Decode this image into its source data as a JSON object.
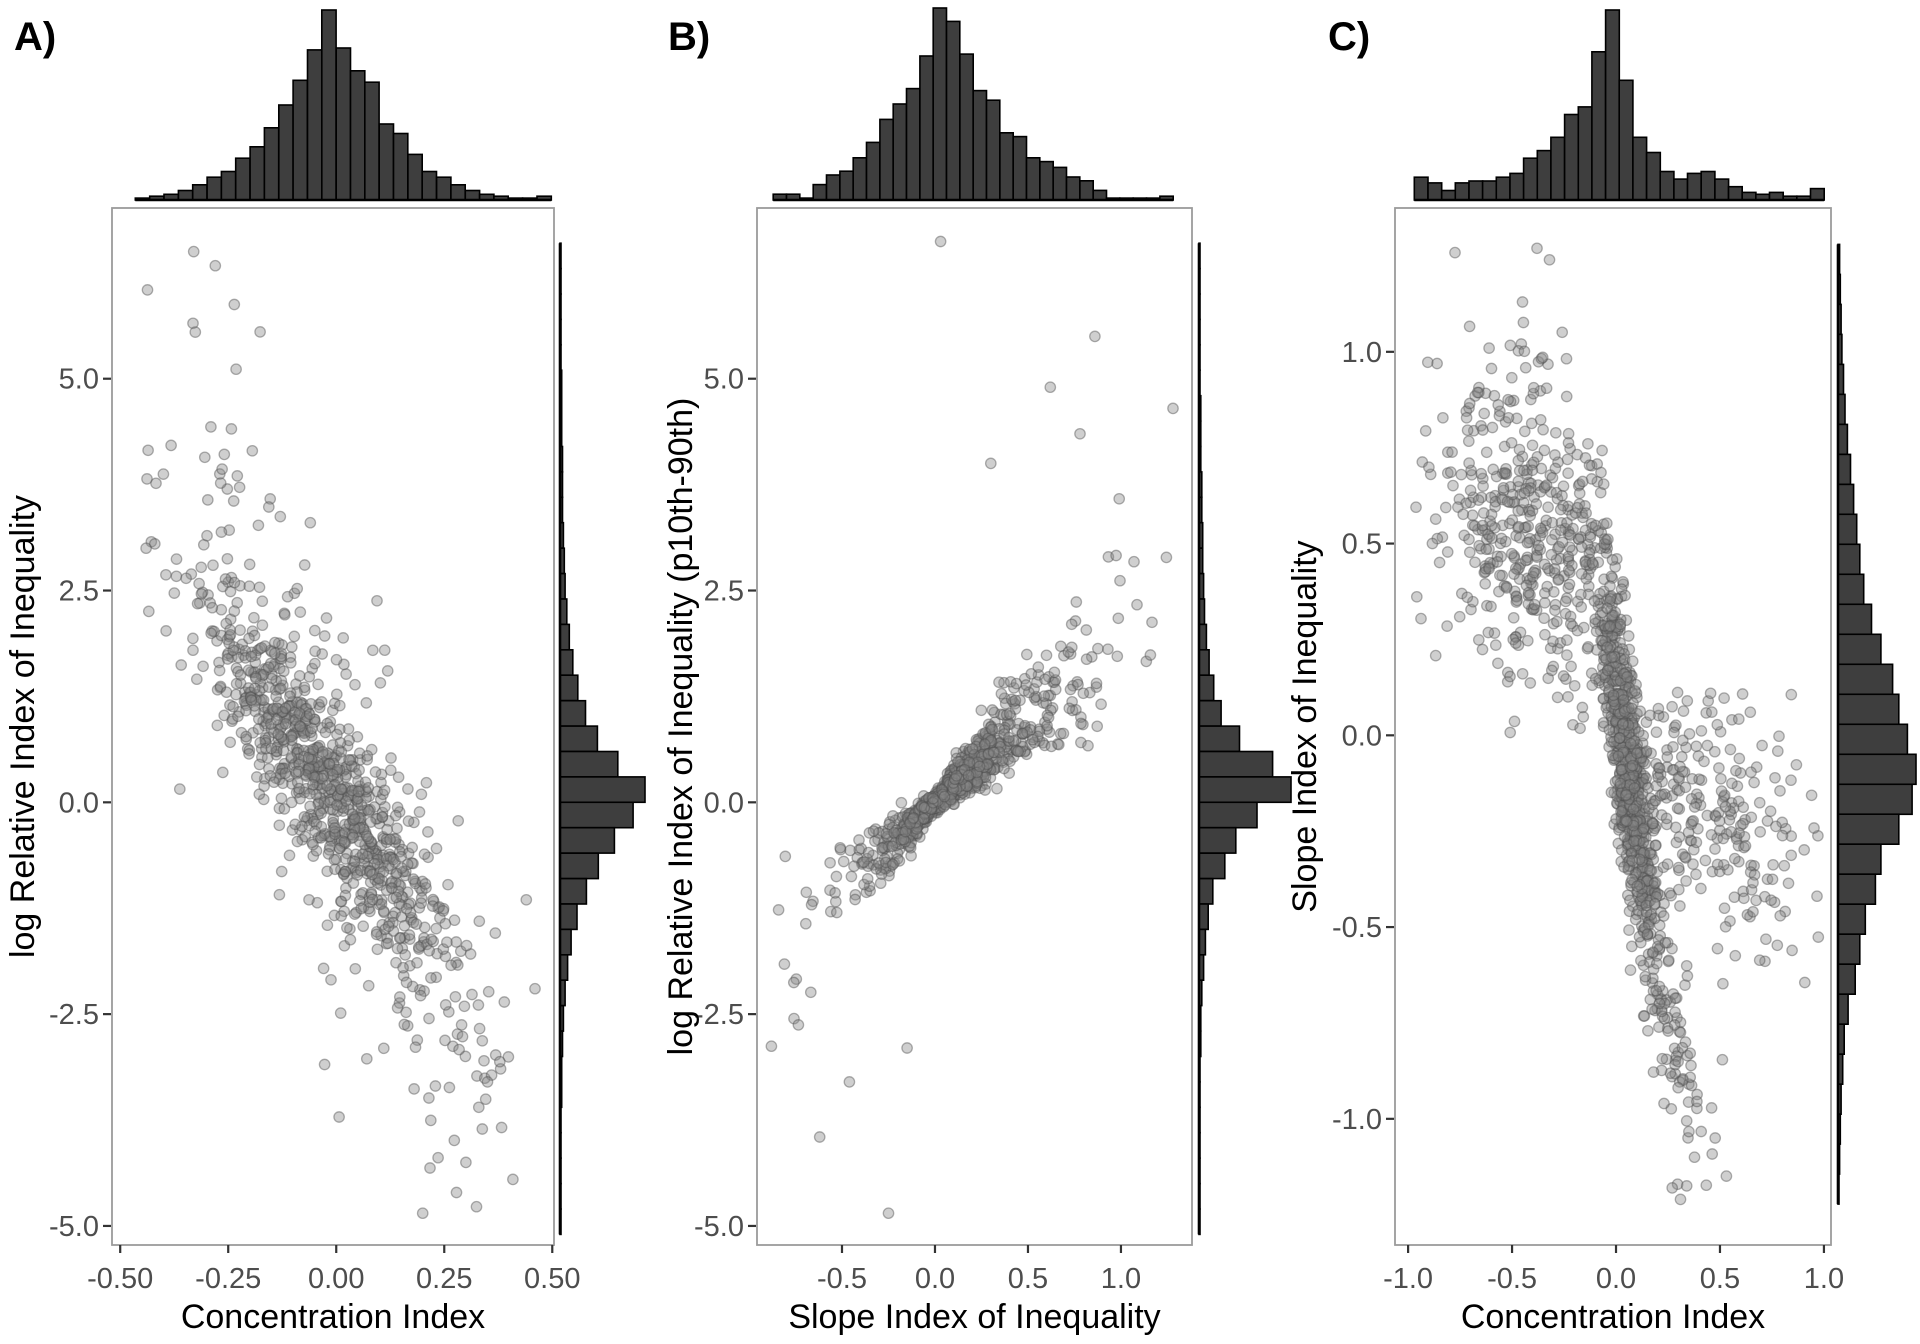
{
  "figure_title": "",
  "style": {
    "background": "#ffffff",
    "histogram_fill": "#3E3E3E",
    "histogram_stroke": "#000000",
    "point_fill": "#868686",
    "point_fill_opacity": 0.4,
    "point_stroke": "#4f4f4f",
    "point_stroke_opacity": 0.45,
    "panel_border_color": "#9b9b9b",
    "tick_label_color": "#4d4d4d",
    "axis_title_color": "#000000",
    "point_radius": 5.2
  },
  "chart_data": [
    {
      "type": "scatter_with_marginal_histograms",
      "panel_label": "A)",
      "x_axis": {
        "title": "Concentration Index",
        "range": [
          -0.519,
          0.504
        ],
        "ticks": [
          {
            "value": -0.5,
            "label": "-0.50"
          },
          {
            "value": -0.25,
            "label": "-0.25"
          },
          {
            "value": 0.0,
            "label": "0.00"
          },
          {
            "value": 0.25,
            "label": "0.25"
          },
          {
            "value": 0.5,
            "label": "0.50"
          }
        ]
      },
      "y_axis": {
        "title": "log Relative Index of Inequality",
        "range": [
          -5.225,
          7.015
        ],
        "ticks": [
          {
            "value": 5.0,
            "label": "5.0"
          },
          {
            "value": 2.5,
            "label": "2.5"
          },
          {
            "value": 0.0,
            "label": "0.0"
          },
          {
            "value": -2.5,
            "label": "-2.5"
          },
          {
            "value": -5.0,
            "label": "-5.0"
          }
        ]
      },
      "top_histogram": {
        "orientation": "x",
        "bin_start": -0.465,
        "bin_width": 0.0332,
        "rel_heights": [
          0.01,
          0.02,
          0.03,
          0.05,
          0.08,
          0.12,
          0.15,
          0.22,
          0.28,
          0.38,
          0.5,
          0.63,
          0.79,
          1.0,
          0.8,
          0.68,
          0.62,
          0.4,
          0.35,
          0.24,
          0.15,
          0.12,
          0.08,
          0.05,
          0.03,
          0.02,
          0.01,
          0.01,
          0.02
        ]
      },
      "right_histogram": {
        "orientation": "y",
        "bin_top": 6.6,
        "bin_width": 0.3,
        "rel_heights": [
          0.01,
          0.01,
          0.01,
          0.01,
          0.01,
          0.02,
          0.02,
          0.02,
          0.03,
          0.03,
          0.03,
          0.04,
          0.05,
          0.06,
          0.08,
          0.11,
          0.15,
          0.21,
          0.3,
          0.44,
          0.68,
          1.0,
          0.86,
          0.64,
          0.45,
          0.31,
          0.2,
          0.13,
          0.09,
          0.06,
          0.04,
          0.03,
          0.02,
          0.02,
          0.01,
          0.01,
          0.01,
          0.01,
          0.01
        ]
      },
      "scatter": {
        "relationship": "strong negative linear trend, log RII decreasing with Concentration Index",
        "seed": 101,
        "model": "linear_clusters",
        "clusters": [
          {
            "n": 900,
            "x_mix": [
              {
                "w": 0.85,
                "mu": -0.015,
                "sd": 0.125
              },
              {
                "w": 0.15,
                "mu": 0.0,
                "sd": 0.21
              }
            ],
            "x_clamp": [
              -0.445,
              0.47
            ],
            "intercept": 0.05,
            "slope": -6.8,
            "noise_mix": [
              {
                "w": 0.8,
                "sd": 0.5
              },
              {
                "w": 0.2,
                "sd": 1.2
              }
            ],
            "y_clamp": [
              -4.9,
              6.5
            ]
          },
          {
            "n": 60,
            "x_mix": [
              {
                "w": 1,
                "mu": -0.27,
                "sd": 0.08
              }
            ],
            "x_clamp": [
              -0.44,
              -0.08
            ],
            "intercept": 1.2,
            "slope": -6.8,
            "noise_mix": [
              {
                "w": 1,
                "sd": 1.5
              }
            ],
            "y_clamp": [
              0.0,
              6.5
            ]
          },
          {
            "n": 45,
            "x_mix": [
              {
                "w": 1,
                "mu": 0.26,
                "sd": 0.08
              }
            ],
            "x_clamp": [
              0.08,
              0.45
            ],
            "intercept": -1.0,
            "slope": -6.8,
            "noise_mix": [
              {
                "w": 1,
                "sd": 1.4
              }
            ],
            "y_clamp": [
              -4.9,
              0.0
            ]
          }
        ],
        "extra_points": [
          [
            -0.33,
            6.5
          ],
          [
            -0.42,
            3.05
          ],
          [
            -0.44,
            3.0
          ],
          [
            0.2,
            -4.85
          ],
          [
            0.3,
            -4.25
          ],
          [
            0.33,
            -3.6
          ],
          [
            -0.06,
            3.3
          ],
          [
            0.44,
            -1.15
          ],
          [
            0.46,
            -2.2
          ],
          [
            0.35,
            -3.3
          ]
        ]
      }
    },
    {
      "type": "scatter_with_marginal_histograms",
      "panel_label": "B)",
      "x_axis": {
        "title": "Slope Index of Inequality",
        "range": [
          -0.957,
          1.382
        ],
        "ticks": [
          {
            "value": -0.5,
            "label": "-0.5"
          },
          {
            "value": 0.0,
            "label": "0.0"
          },
          {
            "value": 0.5,
            "label": "0.5"
          },
          {
            "value": 1.0,
            "label": "1.0"
          }
        ]
      },
      "y_axis": {
        "title": "log Relative Index of Inequality (p10th-90th)",
        "range": [
          -5.225,
          7.015
        ],
        "ticks": [
          {
            "value": 5.0,
            "label": "5.0"
          },
          {
            "value": 2.5,
            "label": "2.5"
          },
          {
            "value": 0.0,
            "label": "0.0"
          },
          {
            "value": -2.5,
            "label": "-2.5"
          },
          {
            "value": -5.0,
            "label": "-5.0"
          }
        ]
      },
      "top_histogram": {
        "orientation": "x",
        "bin_start": -0.87,
        "bin_width": 0.0717,
        "rel_heights": [
          0.03,
          0.03,
          0.01,
          0.08,
          0.13,
          0.15,
          0.22,
          0.3,
          0.42,
          0.5,
          0.58,
          0.75,
          1.0,
          0.93,
          0.76,
          0.57,
          0.52,
          0.35,
          0.33,
          0.22,
          0.2,
          0.17,
          0.12,
          0.1,
          0.05,
          0.01,
          0.01,
          0.01,
          0.01,
          0.02
        ]
      },
      "right_histogram": {
        "orientation": "y",
        "bin_top": 6.6,
        "bin_width": 0.3,
        "rel_heights": [
          0.01,
          0.01,
          0.01,
          0.01,
          0.01,
          0.01,
          0.02,
          0.02,
          0.02,
          0.03,
          0.03,
          0.04,
          0.04,
          0.05,
          0.06,
          0.08,
          0.11,
          0.16,
          0.24,
          0.44,
          0.8,
          1.0,
          0.63,
          0.4,
          0.28,
          0.15,
          0.1,
          0.07,
          0.05,
          0.03,
          0.02,
          0.02,
          0.01,
          0.01,
          0.01,
          0.01,
          0.01,
          0.01,
          0.01
        ]
      },
      "scatter": {
        "relationship": "positive funnel pinched at origin; variance grows with |x|",
        "seed": 202,
        "model": "funnel",
        "n": 1250,
        "x_mix": [
          {
            "w": 0.6,
            "mu": 0.04,
            "sd": 0.12
          },
          {
            "w": 0.28,
            "mu": 0.12,
            "sd": 0.32
          },
          {
            "w": 0.12,
            "mu": 0.2,
            "sd": 0.55
          }
        ],
        "x_clamp": [
          -0.88,
          1.28
        ],
        "slope_base": 0.95,
        "slope_spread": 1.9,
        "slope_pow": 2.2,
        "slope_abs_sd": 0.55,
        "noise_base": 0.05,
        "noise_prop": 0.1,
        "y_clamp": [
          -4.85,
          6.4
        ],
        "extra_points": [
          [
            0.03,
            6.62
          ],
          [
            1.28,
            4.65
          ],
          [
            0.86,
            5.5
          ],
          [
            0.62,
            4.9
          ],
          [
            -0.25,
            -4.85
          ],
          [
            -0.62,
            -3.95
          ],
          [
            -0.46,
            -3.3
          ],
          [
            0.78,
            4.35
          ],
          [
            0.3,
            4.0
          ],
          [
            -0.15,
            -2.9
          ]
        ]
      }
    },
    {
      "type": "scatter_with_marginal_histograms",
      "panel_label": "C)",
      "x_axis": {
        "title": "Concentration Index",
        "range": [
          -1.063,
          1.034
        ],
        "ticks": [
          {
            "value": -1.0,
            "label": "-1.0"
          },
          {
            "value": -0.5,
            "label": "-0.5"
          },
          {
            "value": 0.0,
            "label": "0.0"
          },
          {
            "value": 0.5,
            "label": "0.5"
          },
          {
            "value": 1.0,
            "label": "1.0"
          }
        ]
      },
      "y_axis": {
        "title": "Slope Index of Inequality",
        "range": [
          -1.329,
          1.375
        ],
        "ticks": [
          {
            "value": 1.0,
            "label": "1.0"
          },
          {
            "value": 0.5,
            "label": "0.5"
          },
          {
            "value": 0.0,
            "label": "0.0"
          },
          {
            "value": -0.5,
            "label": "-0.5"
          },
          {
            "value": -1.0,
            "label": "-1.0"
          }
        ]
      },
      "top_histogram": {
        "orientation": "x",
        "bin_start": -0.97,
        "bin_width": 0.0657,
        "rel_heights": [
          0.12,
          0.09,
          0.05,
          0.09,
          0.1,
          0.1,
          0.12,
          0.14,
          0.22,
          0.26,
          0.33,
          0.45,
          0.49,
          0.78,
          1.0,
          0.63,
          0.33,
          0.25,
          0.15,
          0.11,
          0.14,
          0.15,
          0.11,
          0.07,
          0.04,
          0.03,
          0.04,
          0.02,
          0.02,
          0.06
        ]
      },
      "right_histogram": {
        "orientation": "y",
        "bin_top": 1.28,
        "bin_width": 0.0782,
        "rel_heights": [
          0.02,
          0.03,
          0.04,
          0.05,
          0.07,
          0.09,
          0.12,
          0.16,
          0.2,
          0.24,
          0.28,
          0.33,
          0.43,
          0.55,
          0.7,
          0.78,
          0.89,
          1.0,
          0.95,
          0.78,
          0.55,
          0.48,
          0.35,
          0.28,
          0.22,
          0.13,
          0.08,
          0.06,
          0.04,
          0.03,
          0.02,
          0.01
        ]
      },
      "scatter": {
        "relationship": "steep dense negative band near x=0 plus diffuse upper-left and lower-right clouds",
        "seed": 303,
        "model": "linear_clusters",
        "clusters": [
          {
            "n": 820,
            "x_mix": [
              {
                "w": 0.75,
                "mu": 0.05,
                "sd": 0.07
              },
              {
                "w": 0.25,
                "mu": 0.12,
                "sd": 0.13
              }
            ],
            "x_clamp": [
              -0.2,
              0.55
            ],
            "intercept": 0.1,
            "slope": -3.1,
            "noise_mix": [
              {
                "w": 1,
                "sd": 0.15
              }
            ],
            "y_clamp": [
              -1.05,
              0.8
            ]
          },
          {
            "n": 430,
            "x_mix": [
              {
                "w": 1,
                "mu": -0.42,
                "sd": 0.24
              }
            ],
            "x_clamp": [
              -1.0,
              -0.02
            ],
            "intercept": 0.4,
            "slope": -0.3,
            "noise_mix": [
              {
                "w": 1,
                "sd": 0.22
              }
            ],
            "y_clamp": [
              0.0,
              1.27
            ]
          },
          {
            "n": 255,
            "x_mix": [
              {
                "w": 1,
                "mu": 0.42,
                "sd": 0.26
              }
            ],
            "x_clamp": [
              0.01,
              1.0
            ],
            "intercept": -0.05,
            "slope": -0.3,
            "noise_mix": [
              {
                "w": 1,
                "sd": 0.18
              }
            ],
            "y_clamp": [
              -0.95,
              0.12
            ]
          },
          {
            "n": 22,
            "x_mix": [
              {
                "w": 1,
                "mu": 0.3,
                "sd": 0.12
              }
            ],
            "x_clamp": [
              0.05,
              0.55
            ],
            "intercept": -0.95,
            "slope": 0.0,
            "noise_mix": [
              {
                "w": 1,
                "sd": 0.15
              }
            ],
            "y_clamp": [
              -1.22,
              -0.62
            ]
          }
        ],
        "extra_points": [
          [
            -0.38,
            1.27
          ],
          [
            -0.32,
            1.24
          ],
          [
            0.31,
            -1.21
          ],
          [
            -0.45,
            1.13
          ],
          [
            0.27,
            -1.18
          ]
        ]
      }
    }
  ]
}
